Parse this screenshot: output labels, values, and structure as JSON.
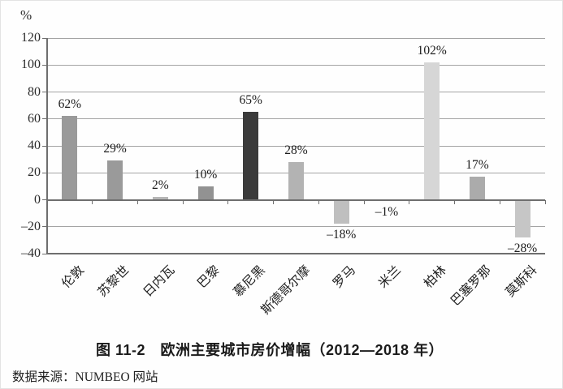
{
  "chart_data": {
    "type": "bar",
    "title": "图 11-2　欧洲主要城市房价增幅（2012—2018 年）",
    "ylabel": "%",
    "xlabel": "",
    "ylim": [
      -40,
      120
    ],
    "grid": true,
    "legend": false,
    "yticks": [
      120,
      100,
      80,
      60,
      40,
      20,
      0,
      -20,
      -40
    ],
    "ytick_labels": [
      "120",
      "100",
      "80",
      "60",
      "40",
      "20",
      "0",
      "–20",
      "–40"
    ],
    "categories": [
      "伦敦",
      "苏黎世",
      "日内瓦",
      "巴黎",
      "慕尼黑",
      "斯德哥尔摩",
      "罗马",
      "米兰",
      "柏林",
      "巴塞罗那",
      "莫斯科"
    ],
    "values": [
      62,
      29,
      2,
      10,
      65,
      28,
      -18,
      -1,
      102,
      17,
      -28
    ],
    "value_labels": [
      "62%",
      "29%",
      "2%",
      "10%",
      "65%",
      "28%",
      "–18%",
      "–1%",
      "102%",
      "17%",
      "–28%"
    ],
    "bar_colors": [
      "#9a9a9a",
      "#9a9a9a",
      "#b6b6b6",
      "#929292",
      "#3b3b3b",
      "#b3b3b3",
      "#bfbfbf",
      "#c6c6c6",
      "#d6d6d6",
      "#ababab",
      "#c6c6c6"
    ],
    "axis_color": "#6e6e6e",
    "grid_color": "#a4a4a4"
  },
  "source": "数据来源：NUMBEO 网站"
}
